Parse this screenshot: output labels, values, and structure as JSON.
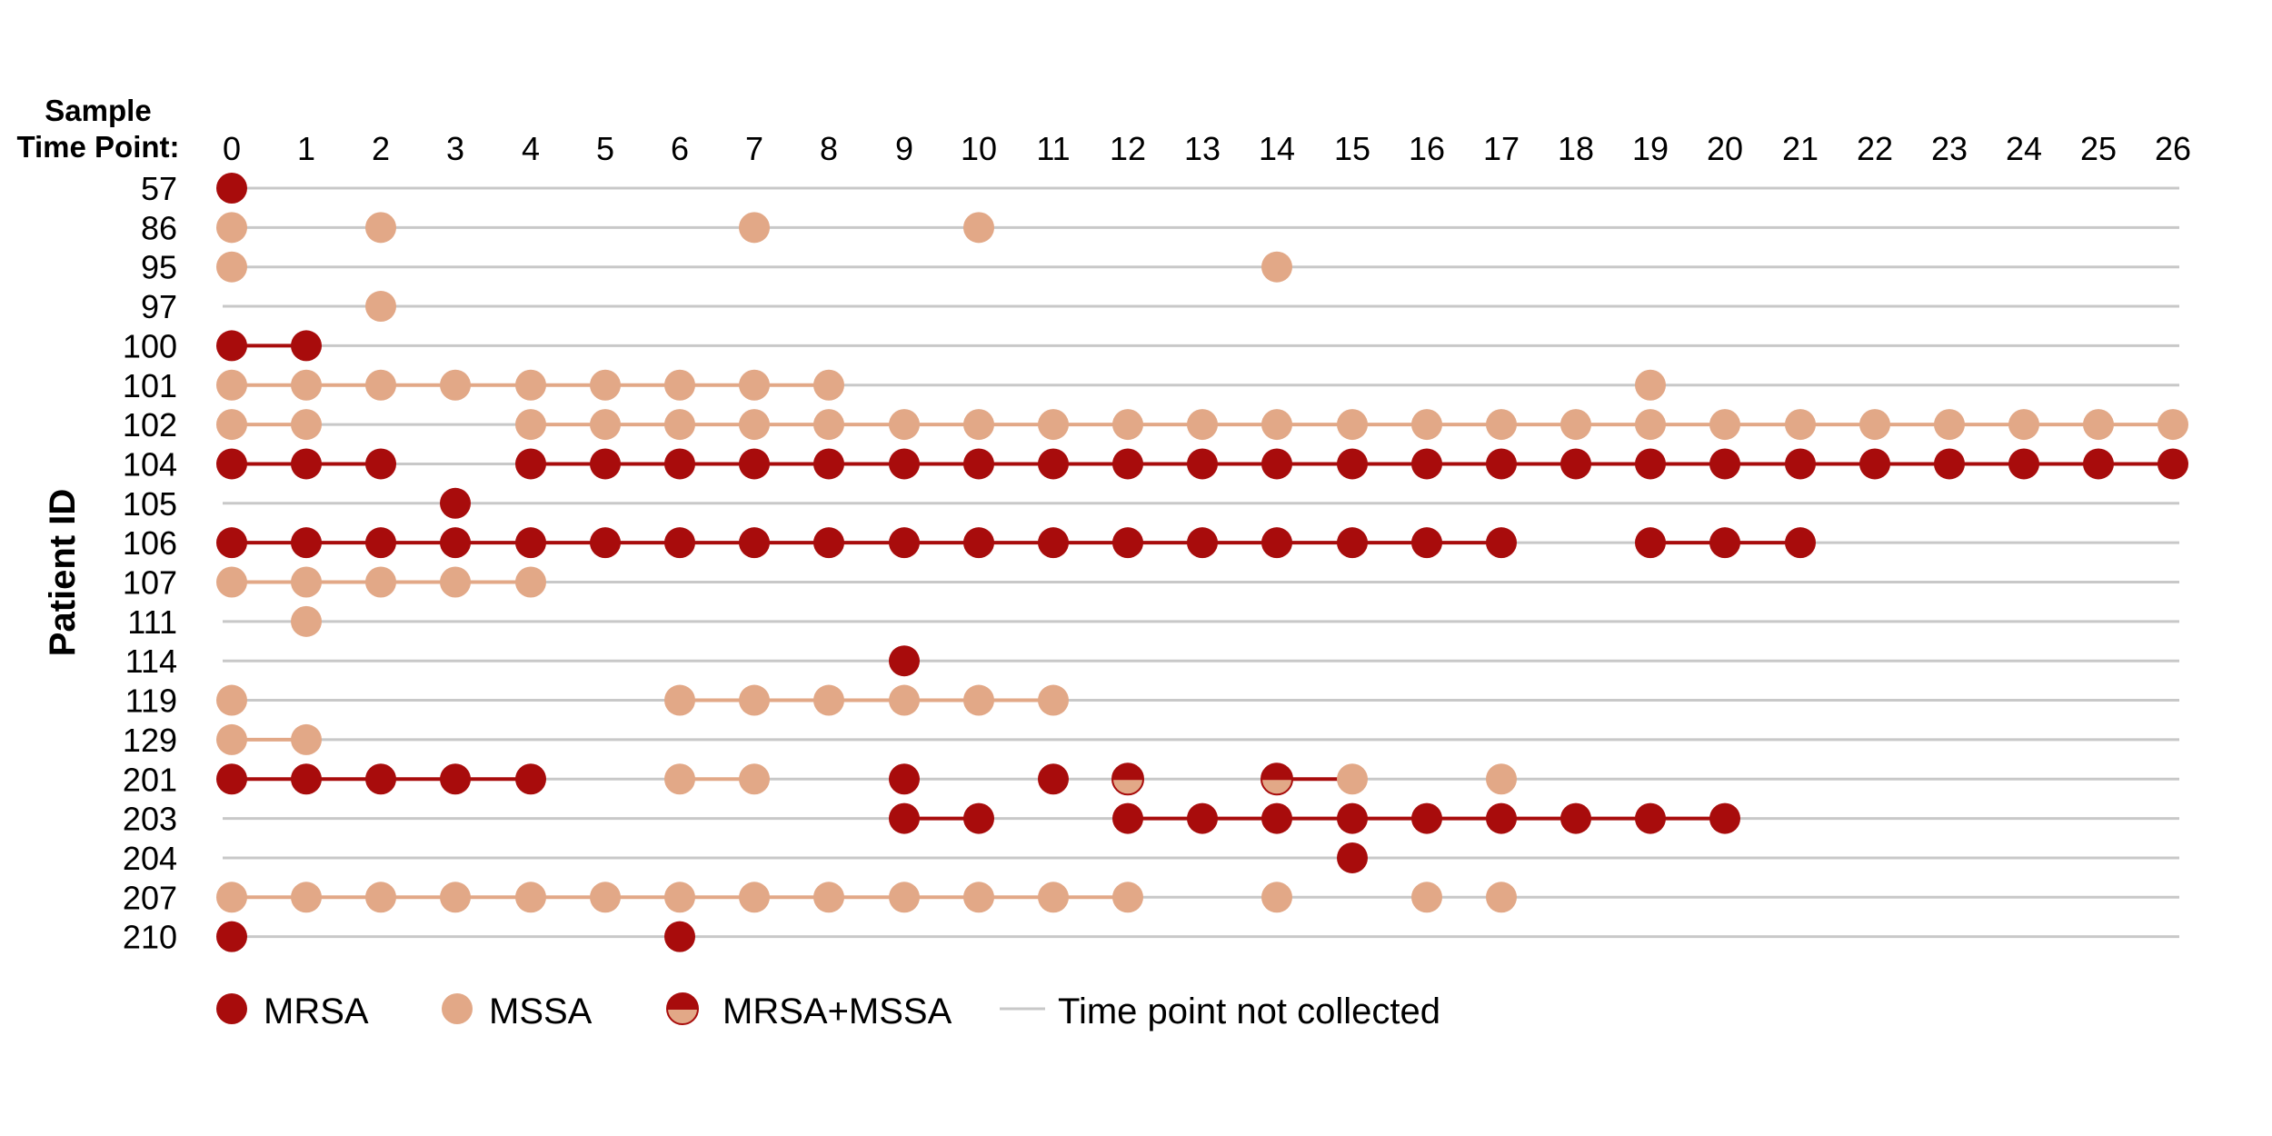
{
  "chart_data": {
    "type": "scatter",
    "header_label_line1": "Sample",
    "header_label_line2": "Time Point:",
    "ylabel": "Patient ID",
    "x_ticks": [
      0,
      1,
      2,
      3,
      4,
      5,
      6,
      7,
      8,
      9,
      10,
      11,
      12,
      13,
      14,
      15,
      16,
      17,
      18,
      19,
      20,
      21,
      22,
      23,
      24,
      25,
      26
    ],
    "grid_color": "#c8c8c8",
    "colors": {
      "MRSA": "#a80c0c",
      "MSSA": "#e2a887"
    },
    "legend": [
      {
        "key": "MRSA",
        "label": "MRSA"
      },
      {
        "key": "MSSA",
        "label": "MSSA"
      },
      {
        "key": "MRSA+MSSA",
        "label": "MRSA+MSSA"
      },
      {
        "key": "not-collected",
        "label": "Time point not collected"
      }
    ],
    "patients": [
      {
        "id": "57",
        "samples": [
          [
            0,
            "MRSA"
          ]
        ],
        "links": []
      },
      {
        "id": "86",
        "samples": [
          [
            0,
            "MSSA"
          ],
          [
            2,
            "MSSA"
          ],
          [
            7,
            "MSSA"
          ],
          [
            10,
            "MSSA"
          ]
        ],
        "links": []
      },
      {
        "id": "95",
        "samples": [
          [
            0,
            "MSSA"
          ],
          [
            14,
            "MSSA"
          ]
        ],
        "links": []
      },
      {
        "id": "97",
        "samples": [
          [
            2,
            "MSSA"
          ]
        ],
        "links": []
      },
      {
        "id": "100",
        "samples": [
          [
            0,
            "MRSA"
          ],
          [
            1,
            "MRSA"
          ]
        ],
        "links": [
          [
            0,
            1,
            "MRSA"
          ]
        ]
      },
      {
        "id": "101",
        "samples": [
          [
            0,
            "MSSA"
          ],
          [
            1,
            "MSSA"
          ],
          [
            2,
            "MSSA"
          ],
          [
            3,
            "MSSA"
          ],
          [
            4,
            "MSSA"
          ],
          [
            5,
            "MSSA"
          ],
          [
            6,
            "MSSA"
          ],
          [
            7,
            "MSSA"
          ],
          [
            8,
            "MSSA"
          ],
          [
            19,
            "MSSA"
          ]
        ],
        "links": [
          [
            0,
            8,
            "MSSA"
          ]
        ]
      },
      {
        "id": "102",
        "samples": [
          [
            0,
            "MSSA"
          ],
          [
            1,
            "MSSA"
          ],
          [
            4,
            "MSSA"
          ],
          [
            5,
            "MSSA"
          ],
          [
            6,
            "MSSA"
          ],
          [
            7,
            "MSSA"
          ],
          [
            8,
            "MSSA"
          ],
          [
            9,
            "MSSA"
          ],
          [
            10,
            "MSSA"
          ],
          [
            11,
            "MSSA"
          ],
          [
            12,
            "MSSA"
          ],
          [
            13,
            "MSSA"
          ],
          [
            14,
            "MSSA"
          ],
          [
            15,
            "MSSA"
          ],
          [
            16,
            "MSSA"
          ],
          [
            17,
            "MSSA"
          ],
          [
            18,
            "MSSA"
          ],
          [
            19,
            "MSSA"
          ],
          [
            20,
            "MSSA"
          ],
          [
            21,
            "MSSA"
          ],
          [
            22,
            "MSSA"
          ],
          [
            23,
            "MSSA"
          ],
          [
            24,
            "MSSA"
          ],
          [
            25,
            "MSSA"
          ],
          [
            26,
            "MSSA"
          ]
        ],
        "links": [
          [
            0,
            1,
            "MSSA"
          ],
          [
            4,
            26,
            "MSSA"
          ]
        ]
      },
      {
        "id": "104",
        "samples": [
          [
            0,
            "MRSA"
          ],
          [
            1,
            "MRSA"
          ],
          [
            2,
            "MRSA"
          ],
          [
            4,
            "MRSA"
          ],
          [
            5,
            "MRSA"
          ],
          [
            6,
            "MRSA"
          ],
          [
            7,
            "MRSA"
          ],
          [
            8,
            "MRSA"
          ],
          [
            9,
            "MRSA"
          ],
          [
            10,
            "MRSA"
          ],
          [
            11,
            "MRSA"
          ],
          [
            12,
            "MRSA"
          ],
          [
            13,
            "MRSA"
          ],
          [
            14,
            "MRSA"
          ],
          [
            15,
            "MRSA"
          ],
          [
            16,
            "MRSA"
          ],
          [
            17,
            "MRSA"
          ],
          [
            18,
            "MRSA"
          ],
          [
            19,
            "MRSA"
          ],
          [
            20,
            "MRSA"
          ],
          [
            21,
            "MRSA"
          ],
          [
            22,
            "MRSA"
          ],
          [
            23,
            "MRSA"
          ],
          [
            24,
            "MRSA"
          ],
          [
            25,
            "MRSA"
          ],
          [
            26,
            "MRSA"
          ]
        ],
        "links": [
          [
            0,
            2,
            "MRSA"
          ],
          [
            4,
            26,
            "MRSA"
          ]
        ]
      },
      {
        "id": "105",
        "samples": [
          [
            3,
            "MRSA"
          ]
        ],
        "links": []
      },
      {
        "id": "106",
        "samples": [
          [
            0,
            "MRSA"
          ],
          [
            1,
            "MRSA"
          ],
          [
            2,
            "MRSA"
          ],
          [
            3,
            "MRSA"
          ],
          [
            4,
            "MRSA"
          ],
          [
            5,
            "MRSA"
          ],
          [
            6,
            "MRSA"
          ],
          [
            7,
            "MRSA"
          ],
          [
            8,
            "MRSA"
          ],
          [
            9,
            "MRSA"
          ],
          [
            10,
            "MRSA"
          ],
          [
            11,
            "MRSA"
          ],
          [
            12,
            "MRSA"
          ],
          [
            13,
            "MRSA"
          ],
          [
            14,
            "MRSA"
          ],
          [
            15,
            "MRSA"
          ],
          [
            16,
            "MRSA"
          ],
          [
            17,
            "MRSA"
          ],
          [
            19,
            "MRSA"
          ],
          [
            20,
            "MRSA"
          ],
          [
            21,
            "MRSA"
          ]
        ],
        "links": [
          [
            0,
            17,
            "MRSA"
          ],
          [
            19,
            21,
            "MRSA"
          ]
        ]
      },
      {
        "id": "107",
        "samples": [
          [
            0,
            "MSSA"
          ],
          [
            1,
            "MSSA"
          ],
          [
            2,
            "MSSA"
          ],
          [
            3,
            "MSSA"
          ],
          [
            4,
            "MSSA"
          ]
        ],
        "links": [
          [
            0,
            4,
            "MSSA"
          ]
        ]
      },
      {
        "id": "111",
        "samples": [
          [
            1,
            "MSSA"
          ]
        ],
        "links": []
      },
      {
        "id": "114",
        "samples": [
          [
            9,
            "MRSA"
          ]
        ],
        "links": []
      },
      {
        "id": "119",
        "samples": [
          [
            0,
            "MSSA"
          ],
          [
            6,
            "MSSA"
          ],
          [
            7,
            "MSSA"
          ],
          [
            8,
            "MSSA"
          ],
          [
            9,
            "MSSA"
          ],
          [
            10,
            "MSSA"
          ],
          [
            11,
            "MSSA"
          ]
        ],
        "links": [
          [
            6,
            11,
            "MSSA"
          ]
        ]
      },
      {
        "id": "129",
        "samples": [
          [
            0,
            "MSSA"
          ],
          [
            1,
            "MSSA"
          ]
        ],
        "links": [
          [
            0,
            1,
            "MSSA"
          ]
        ]
      },
      {
        "id": "201",
        "samples": [
          [
            0,
            "MRSA"
          ],
          [
            1,
            "MRSA"
          ],
          [
            2,
            "MRSA"
          ],
          [
            3,
            "MRSA"
          ],
          [
            4,
            "MRSA"
          ],
          [
            6,
            "MSSA"
          ],
          [
            7,
            "MSSA"
          ],
          [
            9,
            "MRSA"
          ],
          [
            11,
            "MRSA"
          ],
          [
            12,
            "MRSA+MSSA"
          ],
          [
            14,
            "MRSA+MSSA"
          ],
          [
            15,
            "MSSA"
          ],
          [
            17,
            "MSSA"
          ]
        ],
        "links": [
          [
            0,
            4,
            "MRSA"
          ],
          [
            6,
            7,
            "MSSA"
          ],
          [
            14,
            15,
            "MRSA"
          ]
        ]
      },
      {
        "id": "203",
        "samples": [
          [
            9,
            "MRSA"
          ],
          [
            10,
            "MRSA"
          ],
          [
            12,
            "MRSA"
          ],
          [
            13,
            "MRSA"
          ],
          [
            14,
            "MRSA"
          ],
          [
            15,
            "MRSA"
          ],
          [
            16,
            "MRSA"
          ],
          [
            17,
            "MRSA"
          ],
          [
            18,
            "MRSA"
          ],
          [
            19,
            "MRSA"
          ],
          [
            20,
            "MRSA"
          ]
        ],
        "links": [
          [
            9,
            10,
            "MRSA"
          ],
          [
            12,
            20,
            "MRSA"
          ]
        ]
      },
      {
        "id": "204",
        "samples": [
          [
            15,
            "MRSA"
          ]
        ],
        "links": []
      },
      {
        "id": "207",
        "samples": [
          [
            0,
            "MSSA"
          ],
          [
            1,
            "MSSA"
          ],
          [
            2,
            "MSSA"
          ],
          [
            3,
            "MSSA"
          ],
          [
            4,
            "MSSA"
          ],
          [
            5,
            "MSSA"
          ],
          [
            6,
            "MSSA"
          ],
          [
            7,
            "MSSA"
          ],
          [
            8,
            "MSSA"
          ],
          [
            9,
            "MSSA"
          ],
          [
            10,
            "MSSA"
          ],
          [
            11,
            "MSSA"
          ],
          [
            12,
            "MSSA"
          ],
          [
            14,
            "MSSA"
          ],
          [
            16,
            "MSSA"
          ],
          [
            17,
            "MSSA"
          ]
        ],
        "links": [
          [
            0,
            12,
            "MSSA"
          ]
        ]
      },
      {
        "id": "210",
        "samples": [
          [
            0,
            "MRSA"
          ],
          [
            6,
            "MRSA"
          ]
        ],
        "links": []
      }
    ]
  }
}
